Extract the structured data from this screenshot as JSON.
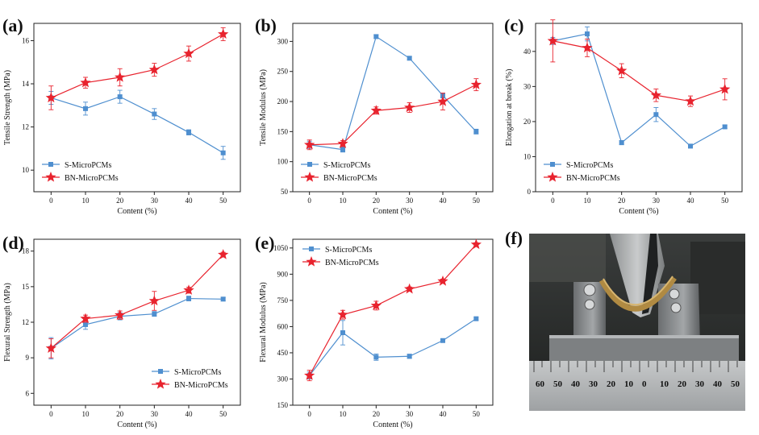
{
  "colors": {
    "s": "#4f8fcf",
    "bn": "#e8232e"
  },
  "chart_data": [
    {
      "type": "line",
      "id": "a",
      "panel_label": "(a)",
      "xlabel": "Content (%)",
      "ylabel": "Tensile Strength (MPa)",
      "xticks": [
        "0",
        "10",
        "20",
        "30",
        "40",
        "50"
      ],
      "yticks": [
        "10",
        "12",
        "14",
        "16"
      ],
      "xlim": [
        -5,
        55
      ],
      "ylim": [
        9,
        16.8
      ],
      "legend_position": "lower-left",
      "series": [
        {
          "name": "S-MicroPCMs",
          "x": [
            0,
            10,
            20,
            30,
            40,
            50
          ],
          "y": [
            13.35,
            12.85,
            13.4,
            12.6,
            11.75,
            10.8
          ],
          "err": [
            0.3,
            0.3,
            0.3,
            0.25,
            0.12,
            0.3
          ]
        },
        {
          "name": "BN-MicroPCMs",
          "x": [
            0,
            10,
            20,
            30,
            40,
            50
          ],
          "y": [
            13.35,
            14.05,
            14.3,
            14.65,
            15.4,
            16.3
          ],
          "err": [
            0.55,
            0.25,
            0.4,
            0.3,
            0.35,
            0.3
          ]
        }
      ]
    },
    {
      "type": "line",
      "id": "b",
      "panel_label": "(b)",
      "xlabel": "Content (%)",
      "ylabel": "Tensile Modulus (MPa)",
      "xticks": [
        "0",
        "10",
        "20",
        "30",
        "40",
        "50"
      ],
      "yticks": [
        "50",
        "100",
        "150",
        "200",
        "250",
        "300"
      ],
      "xlim": [
        -5,
        55
      ],
      "ylim": [
        50,
        330
      ],
      "legend_position": "lower-left",
      "series": [
        {
          "name": "S-MicroPCMs",
          "x": [
            0,
            10,
            20,
            30,
            40,
            50
          ],
          "y": [
            128,
            120,
            308,
            272,
            210,
            150
          ],
          "err": [
            6,
            4,
            3,
            3,
            4,
            4
          ]
        },
        {
          "name": "BN-MicroPCMs",
          "x": [
            0,
            10,
            20,
            30,
            40,
            50
          ],
          "y": [
            128,
            130,
            185,
            190,
            200,
            228
          ],
          "err": [
            8,
            5,
            6,
            8,
            14,
            10
          ]
        }
      ]
    },
    {
      "type": "line",
      "id": "c",
      "panel_label": "(c)",
      "xlabel": "Content (%)",
      "ylabel": "Elongation at break (%)",
      "xticks": [
        "0",
        "10",
        "20",
        "30",
        "40",
        "50"
      ],
      "yticks": [
        "0",
        "10",
        "20",
        "30",
        "40"
      ],
      "xlim": [
        -5,
        55
      ],
      "ylim": [
        0,
        48
      ],
      "legend_position": "lower-left",
      "series": [
        {
          "name": "S-MicroPCMs",
          "x": [
            0,
            10,
            20,
            30,
            40,
            50
          ],
          "y": [
            43,
            45,
            14,
            22,
            13,
            18.5
          ],
          "err": [
            1,
            2,
            0.6,
            2,
            0.5,
            0.5
          ]
        },
        {
          "name": "BN-MicroPCMs",
          "x": [
            0,
            10,
            20,
            30,
            40,
            50
          ],
          "y": [
            43,
            41,
            34.5,
            27.5,
            25.8,
            29.2
          ],
          "err": [
            6,
            2.5,
            2,
            1.8,
            1.5,
            3
          ]
        }
      ]
    },
    {
      "type": "line",
      "id": "d",
      "panel_label": "(d)",
      "xlabel": "Content (%)",
      "ylabel": "Flexural Strength (MPa)",
      "xticks": [
        "0",
        "10",
        "20",
        "30",
        "40",
        "50"
      ],
      "yticks": [
        "6",
        "9",
        "12",
        "15",
        "18"
      ],
      "xlim": [
        -5,
        55
      ],
      "ylim": [
        5,
        19
      ],
      "legend_position": "lower-right",
      "series": [
        {
          "name": "S-MicroPCMs",
          "x": [
            0,
            10,
            20,
            30,
            40,
            50
          ],
          "y": [
            9.8,
            11.8,
            12.5,
            12.7,
            14.0,
            13.95
          ],
          "err": [
            0.9,
            0.4,
            0.3,
            0.2,
            0.2,
            0.15
          ]
        },
        {
          "name": "BN-MicroPCMs",
          "x": [
            0,
            10,
            20,
            30,
            40,
            50
          ],
          "y": [
            9.8,
            12.3,
            12.6,
            13.8,
            14.7,
            17.7
          ],
          "err": [
            0.8,
            0.3,
            0.35,
            0.8,
            0.25,
            0.2
          ]
        }
      ]
    },
    {
      "type": "line",
      "id": "e",
      "panel_label": "(e)",
      "xlabel": "Content (%)",
      "ylabel": "Flexural Modulus (MPa)",
      "xticks": [
        "0",
        "10",
        "20",
        "30",
        "40",
        "50"
      ],
      "yticks": [
        "150",
        "300",
        "450",
        "600",
        "750",
        "900",
        "1050"
      ],
      "xlim": [
        -5,
        55
      ],
      "ylim": [
        150,
        1100
      ],
      "legend_position": "top-left",
      "series": [
        {
          "name": "S-MicroPCMs",
          "x": [
            0,
            10,
            20,
            30,
            40,
            50
          ],
          "y": [
            320,
            565,
            425,
            430,
            520,
            645
          ],
          "err": [
            20,
            70,
            18,
            12,
            10,
            8
          ]
        },
        {
          "name": "BN-MicroPCMs",
          "x": [
            0,
            10,
            20,
            30,
            40,
            50
          ],
          "y": [
            320,
            668,
            720,
            815,
            860,
            1070
          ],
          "err": [
            30,
            25,
            25,
            12,
            12,
            10
          ]
        }
      ]
    }
  ],
  "photo": {
    "panel_label": "(f)",
    "ruler_numbers": [
      "60",
      "50",
      "40",
      "30",
      "20",
      "10",
      "0",
      "10",
      "20",
      "30",
      "40",
      "50"
    ]
  }
}
